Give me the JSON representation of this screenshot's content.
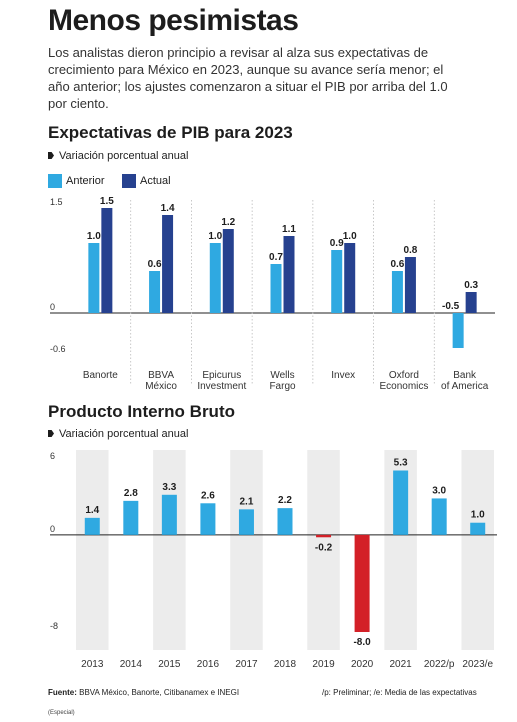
{
  "title": "Menos pesimistas",
  "intro": "Los analistas dieron principio a revisar al alza sus expectativas de crecimiento para México en 2023, aunque su avance sería menor; el año anterior; los ajustes comenzaron a situar el PIB por arriba del 1.0 por ciento.",
  "source_label": "Fuente:",
  "source_text": "BBVA México, Banorte, Citibanamex e INEGI",
  "notes": "/p: Preliminar; /e: Media de las expectativas",
  "credit": "(Especial)",
  "colors": {
    "anterior": "#2fa9e1",
    "actual": "#26418f",
    "negative": "#d32027",
    "band": "#ececec"
  },
  "chart_data": [
    {
      "type": "bar",
      "title": "Expectativas de PIB para 2023",
      "subtitle": "Variación porcentual anual",
      "categories": [
        "Banorte",
        "BBVA\nMéxico",
        "Epicurus\nInvestment",
        "Wells\nFargo",
        "Invex",
        "Oxford\nEconomics",
        "Bank\nof America"
      ],
      "series": [
        {
          "name": "Anterior",
          "values": [
            1.0,
            0.6,
            1.0,
            0.7,
            0.9,
            0.6,
            -0.5
          ]
        },
        {
          "name": "Actual",
          "values": [
            1.5,
            1.4,
            1.2,
            1.1,
            1.0,
            0.8,
            0.3
          ]
        }
      ],
      "yticks": [
        "1.5",
        "0",
        "-0.6"
      ],
      "ylim": [
        -0.6,
        1.5
      ],
      "grid": false,
      "legend": "top-left"
    },
    {
      "type": "bar",
      "title": "Producto Interno Bruto",
      "subtitle": "Variación porcentual anual",
      "categories": [
        "2013",
        "2014",
        "2015",
        "2016",
        "2017",
        "2018",
        "2019",
        "2020",
        "2021",
        "2022/p",
        "2023/e"
      ],
      "values": [
        1.4,
        2.8,
        3.3,
        2.6,
        2.1,
        2.2,
        -0.2,
        -8.0,
        5.3,
        3.0,
        1.0
      ],
      "yticks": [
        "6",
        "0",
        "-8"
      ],
      "ylim": [
        -8,
        6
      ],
      "grid": false
    }
  ]
}
